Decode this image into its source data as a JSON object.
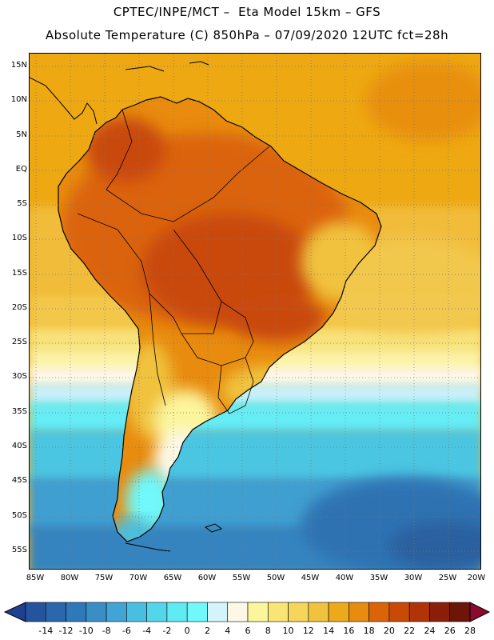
{
  "title_line1": "CPTEC/INPE/MCT –  Eta Model 15km – GFS",
  "title_line2": "Absolute Temperature (C) 850hPa – 07/09/2020 12UTC fct=28h",
  "latitude_labels": [
    "15N",
    "10N",
    "5N",
    "EQ",
    "5S",
    "10S",
    "15S",
    "20S",
    "25S",
    "30S",
    "35S",
    "40S",
    "45S",
    "50S",
    "55S"
  ],
  "longitude_labels": [
    "85W",
    "80W",
    "75W",
    "70W",
    "65W",
    "60W",
    "55W",
    "50W",
    "45W",
    "40W",
    "35W",
    "30W",
    "25W",
    "20W"
  ],
  "colorbar": {
    "labels": [
      "-14",
      "-12",
      "-10",
      "-8",
      "-6",
      "-4",
      "-2",
      "0",
      "2",
      "4",
      "6",
      "8",
      "10",
      "12",
      "14",
      "16",
      "18",
      "20",
      "22",
      "24",
      "26",
      "28"
    ],
    "colors": [
      "#1f3f8f",
      "#24549e",
      "#2a67ad",
      "#3079b8",
      "#3a8ec6",
      "#42a4d4",
      "#48bfe0",
      "#53d6ea",
      "#60eaf4",
      "#70f8fb",
      "#d2f4fa",
      "#fdf8e6",
      "#fbf59c",
      "#f9e574",
      "#f5d55a",
      "#f0c23e",
      "#ecaa1a",
      "#e88b0e",
      "#db6409",
      "#c94a07",
      "#b03406",
      "#8b1e08",
      "#6d1509",
      "#8b0a2e"
    ]
  }
}
